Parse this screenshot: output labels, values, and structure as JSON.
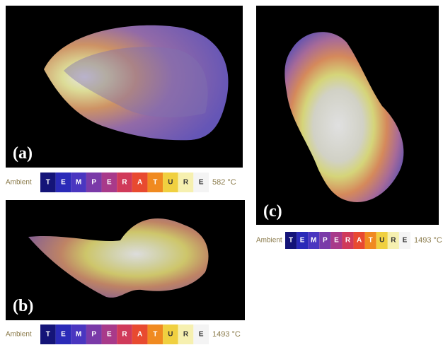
{
  "panels": [
    {
      "label": "(a)",
      "scale": {
        "start": "Ambient",
        "letters": [
          "T",
          "E",
          "M",
          "P",
          "E",
          "R",
          "A",
          "T",
          "U",
          "R",
          "E"
        ],
        "end": "582 °C"
      }
    },
    {
      "label": "(b)",
      "scale": {
        "start": "Ambient",
        "letters": [
          "T",
          "E",
          "M",
          "P",
          "E",
          "R",
          "A",
          "T",
          "U",
          "R",
          "E"
        ],
        "end": "1493 °C"
      }
    },
    {
      "label": "(c)",
      "scale": {
        "start": "Ambient",
        "letters": [
          "T",
          "E",
          "M",
          "P",
          "E",
          "R",
          "A",
          "T",
          "U",
          "R",
          "E"
        ],
        "end": "1493 °C"
      }
    }
  ]
}
